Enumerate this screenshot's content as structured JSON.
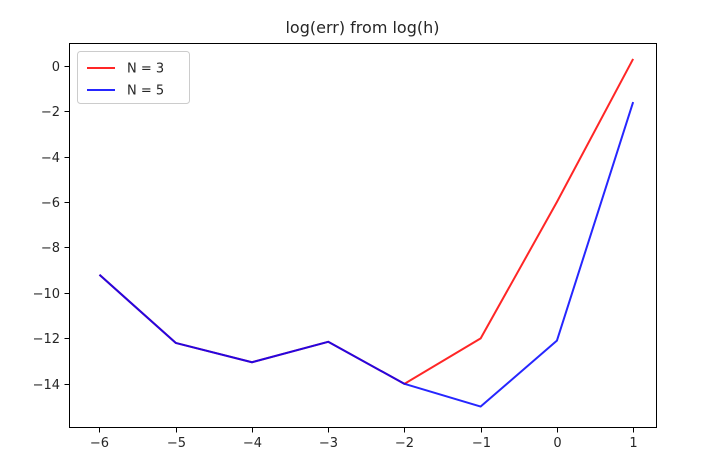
{
  "chart_data": {
    "type": "line",
    "title": "log(err) from log(h)",
    "xlabel": "",
    "ylabel": "",
    "x": [
      -6,
      -5,
      -4,
      -3,
      -2,
      -1,
      0,
      1
    ],
    "xlim": [
      -6.4,
      1.3
    ],
    "ylim": [
      -15.9,
      1.0
    ],
    "xticks": [
      -6,
      -5,
      -4,
      -3,
      -2,
      -1,
      0,
      1
    ],
    "xtick_labels": [
      "−6",
      "−5",
      "−4",
      "−3",
      "−2",
      "−1",
      "0",
      "1"
    ],
    "yticks": [
      0,
      -2,
      -4,
      -6,
      -8,
      -10,
      -12,
      -14
    ],
    "ytick_labels": [
      "0",
      "−2",
      "−4",
      "−6",
      "−8",
      "−10",
      "−12",
      "−14"
    ],
    "grid": false,
    "legend_position": "upper-left",
    "series": [
      {
        "name": "N = 3",
        "color": "#ff0000",
        "values": [
          -9.2,
          -12.2,
          -13.05,
          -12.15,
          -14.0,
          -12.0,
          -6.0,
          0.3
        ]
      },
      {
        "name": "N = 5",
        "color": "#0000ff",
        "values": [
          -9.2,
          -12.2,
          -13.05,
          -12.15,
          -14.0,
          -15.0,
          -12.1,
          -1.6
        ]
      }
    ]
  }
}
